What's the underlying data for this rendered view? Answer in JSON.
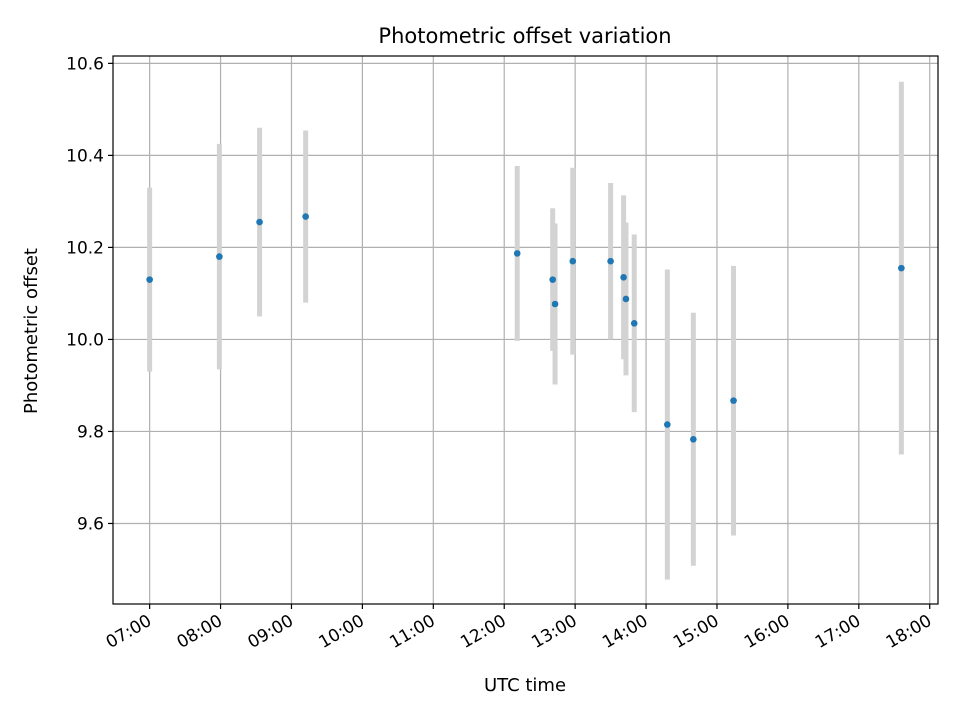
{
  "chart_data": {
    "type": "scatter",
    "title": "Photometric offset variation",
    "xlabel": "UTC time",
    "ylabel": "Photometric offset",
    "xlim": [
      "06:29",
      "18:07"
    ],
    "ylim": [
      9.425,
      10.616
    ],
    "x_tick_labels": [
      "07:00",
      "08:00",
      "09:00",
      "10:00",
      "11:00",
      "12:00",
      "13:00",
      "14:00",
      "15:00",
      "16:00",
      "17:00",
      "18:00"
    ],
    "y_tick_labels": [
      "9.6",
      "9.8",
      "10.0",
      "10.2",
      "10.4",
      "10.6"
    ],
    "grid": true,
    "marker_color": "#1f77b4",
    "errorbar_color": "#d3d3d3",
    "series": [
      {
        "points": [
          {
            "x": "07:00",
            "y": 10.13,
            "yerr": 0.2
          },
          {
            "x": "07:59",
            "y": 10.18,
            "yerr": 0.245
          },
          {
            "x": "08:33",
            "y": 10.255,
            "yerr": 0.205
          },
          {
            "x": "09:12",
            "y": 10.267,
            "yerr": 0.187
          },
          {
            "x": "12:11",
            "y": 10.187,
            "yerr": 0.19
          },
          {
            "x": "12:41",
            "y": 10.13,
            "yerr": 0.155
          },
          {
            "x": "12:43",
            "y": 10.077,
            "yerr": 0.175
          },
          {
            "x": "12:58",
            "y": 10.17,
            "yerr": 0.203
          },
          {
            "x": "13:30",
            "y": 10.17,
            "yerr": 0.17
          },
          {
            "x": "13:41",
            "y": 10.135,
            "yerr": 0.178
          },
          {
            "x": "13:43",
            "y": 10.088,
            "yerr": 0.166
          },
          {
            "x": "13:50",
            "y": 10.035,
            "yerr": 0.193
          },
          {
            "x": "14:18",
            "y": 9.815,
            "yerr": 0.337
          },
          {
            "x": "14:40",
            "y": 9.783,
            "yerr": 0.275
          },
          {
            "x": "15:14",
            "y": 9.867,
            "yerr": 0.293
          },
          {
            "x": "17:36",
            "y": 10.155,
            "yerr": 0.405
          }
        ]
      }
    ]
  }
}
